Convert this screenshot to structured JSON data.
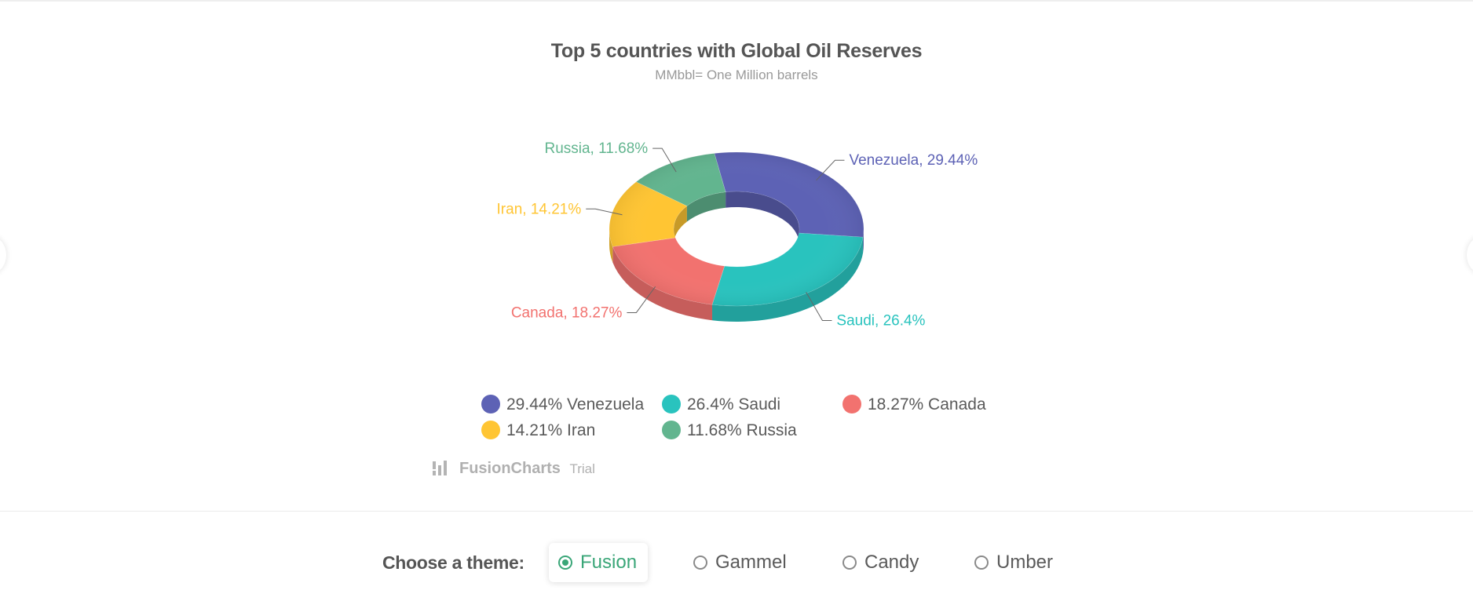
{
  "chart_data": {
    "type": "pie",
    "variant": "doughnut-3d",
    "title": "Top 5 countries with Global Oil Reserves",
    "subtitle": "MMbbl= One Million barrels",
    "slices": [
      {
        "label": "Venezuela",
        "value": 29.44,
        "display": "Venezuela, 29.44%",
        "legend": "29.44% Venezuela",
        "color": "#5d62b5"
      },
      {
        "label": "Saudi",
        "value": 26.4,
        "display": "Saudi, 26.4%",
        "legend": "26.4% Saudi",
        "color": "#29c3be"
      },
      {
        "label": "Canada",
        "value": 18.27,
        "display": "Canada, 18.27%",
        "legend": "18.27% Canada",
        "color": "#f2726f"
      },
      {
        "label": "Iran",
        "value": 14.21,
        "display": "Iran, 14.21%",
        "legend": "14.21% Iran",
        "color": "#ffc533"
      },
      {
        "label": "Russia",
        "value": 11.68,
        "display": "Russia, 11.68%",
        "legend": "11.68% Russia",
        "color": "#62b58f"
      }
    ],
    "legend_position": "bottom",
    "credit": {
      "brand": "FusionCharts",
      "suffix": "Trial"
    }
  },
  "theme_selector": {
    "label": "Choose a theme:",
    "options": [
      {
        "label": "Fusion",
        "selected": true
      },
      {
        "label": "Gammel",
        "selected": false
      },
      {
        "label": "Candy",
        "selected": false
      },
      {
        "label": "Umber",
        "selected": false
      }
    ]
  },
  "colors": {
    "accent": "#3aa678",
    "title": "#555555",
    "subtitle": "#999999",
    "text": "#5a5a5a"
  }
}
